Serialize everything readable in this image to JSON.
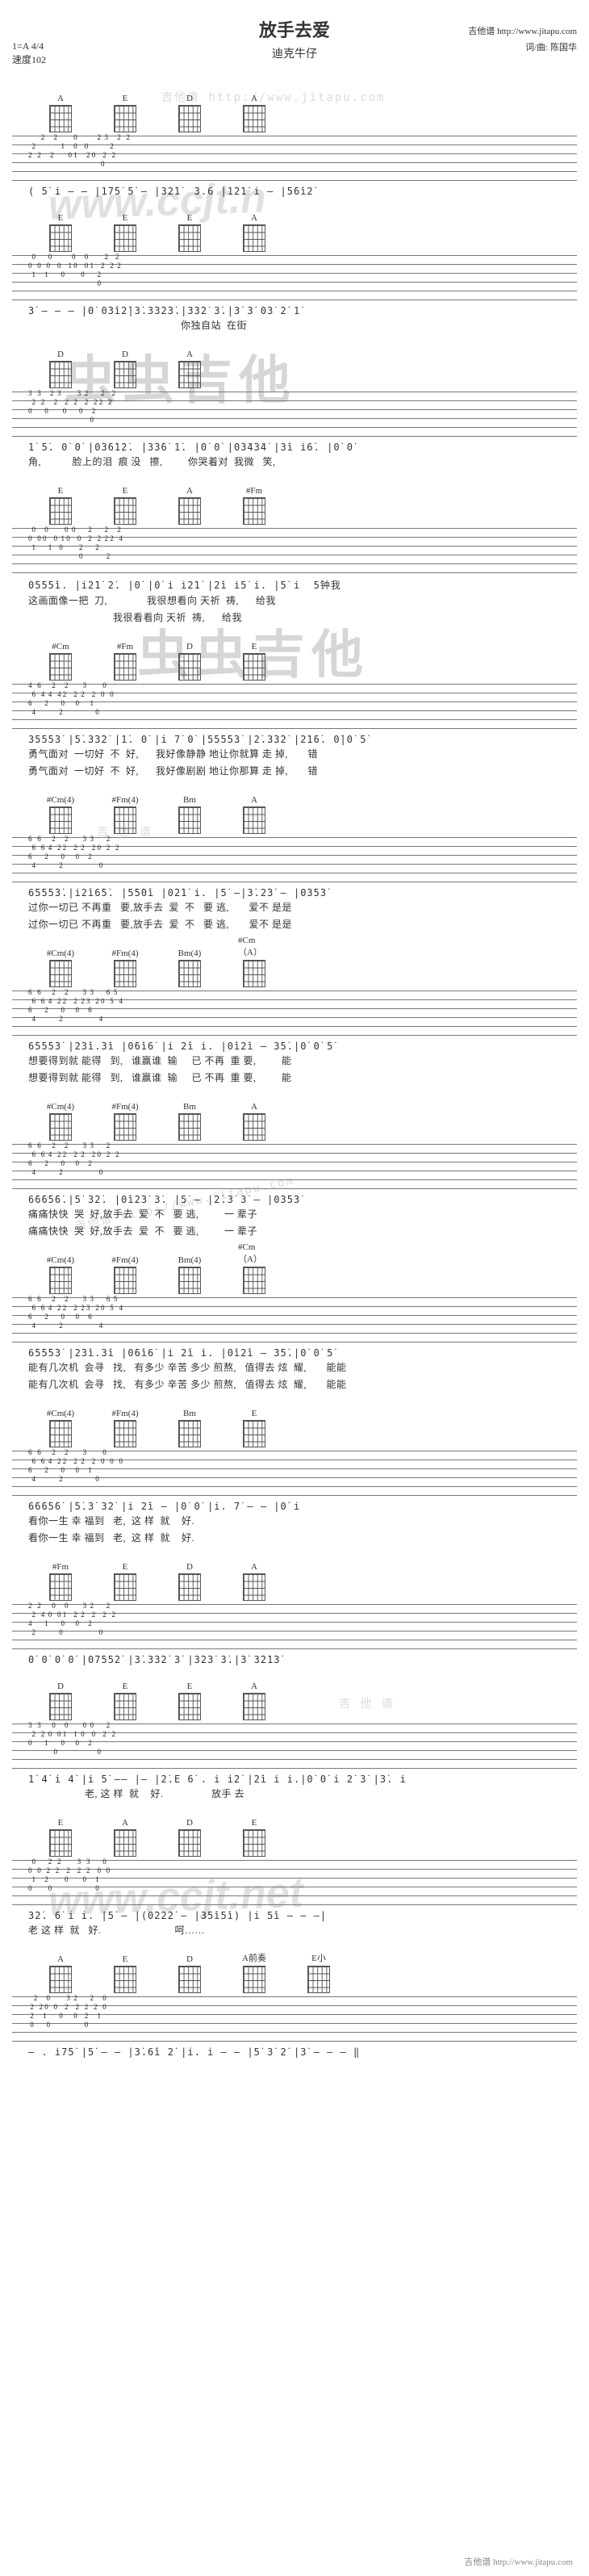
{
  "header": {
    "title": "放手去爱",
    "subtitle": "迪克牛仔",
    "key": "1=A  4/4",
    "tempo": "速度102",
    "credit_site_label": "吉他谱",
    "credit_site": "http://www.jitapu.com",
    "credit_composer_label": "词/曲:",
    "credit_composer": "陈国华"
  },
  "chords": {
    "A": "A",
    "E": "E",
    "D": "D",
    "Bm": "Bm",
    "sFm": "#Fm",
    "sCm": "#Cm",
    "sCm4": "#Cm(4)",
    "sFm4": "#Fm(4)",
    "Bm4": "Bm(4)",
    "sCm_A": "#Cm（A）",
    "Ehalf": "E½",
    "Ahalf": "A½",
    "A_pref": "A前奏",
    "Esmall": "E小"
  },
  "systems": [
    {
      "chords": [
        "A",
        "E",
        "D",
        "A"
      ],
      "tab": "       2     2         0           2  3     2   2\n  2              1     0    0            2\n2   2     2        0 1     2 0    2   2\n                                        0",
      "notation": "( 5̇ i — — |1̇7̇5̇ 5̇ — |32̇1̇  3.6 |1̇2̇1̇ i — |5̇6̇i2̇",
      "lyric": ""
    },
    {
      "chords": [
        "E",
        "E",
        "E",
        "A"
      ],
      "tab": "  0       0           0     0         2    2\n0   0   0    0    1 0    0 1    2   2  2\n  1     1       0         0       2\n                                      0",
      "notation": "3̇ — — — |0̇ 0̇3̇i2̇|3̇.3̇3̇2̇3̇.|3̇3̇2̇ 3̇.|3̇ 3̇ 0̇3̇ 2̇ 1̇",
      "lyric": "                                                      你独自站  在街"
    },
    {
      "chords": [
        "D",
        "D",
        "A"
      ],
      "tab": "3   3     2  3         3  2       2    2\n  2   2     2    2   2    2   2 2   2\n0       0        0       0     2\n                                  0",
      "notation": "1̇ 5̇. 0̇ 0̇ |0̇3̇6̇1̇2̇. |3̇3̇6̇ 1̇. |0̇ 0̇ |0̇3̇4̇3̇4̇ |3̇i i̇6̇. |0̇ 0̇",
      "lyric": "角,           脸上的泪  痕 没   擦,         你哭着对  我微   笑,"
    },
    {
      "chords": [
        "E",
        "E",
        "A",
        "sFm"
      ],
      "tab": "  0     0         0  0       2       2     2\n0   0 0    0  1 0    0    2   2  2 2   4\n  1       1    0         2       2\n                            0             2",
      "notation": "0̇5̇5̇5̇i. |i2̇1̇ 2̇. |0̇ |0̇ i i2̇1̇ |2̇i i̇5̇ i. |5̇ i  5̇钟我",
      "lyric": "这画面像一把  刀,              我很想看向 天祈  祷,      给我\n                              我很看看向 天祈  祷,      给我"
    },
    {
      "chords": [
        "sCm",
        "sFm",
        "D",
        "E"
      ],
      "tab": "4   6      2     2        3         0\n  6   4  4   4 2    2  2    2   0   0\n6       2       0      0      1\n  4             2                  0",
      "notation": "3̇5̇5̇5̇3̇ |5̇.3̇3̇2̇ |1̇. 0̇ |i 7̇ 0̇ |5̇5̇5̇5̇3̇ |2̇.3̇3̇2̇ |2̇1̇6̇. 0̇|0̇ 5̇",
      "lyric": "勇气面对  一切好  不  好,      我好像静静 地让你就算 走 掉,       错\n勇气面对  一切好  不  好,      我好像剧剧 地让你那算 走 掉,       错"
    },
    {
      "chords": [
        "sCm4",
        "sFm4",
        "Bm",
        "A"
      ],
      "tab": "6   6      2     2        3  3       2\n  6   6  4   2 2    2  2    2 0   2   2\n6       2       0      0     2\n  4             2                    0",
      "notation": "6̇5̇5̇5̇3̇.|i2̇i6̇5̇. |5̇5̇0̇i |0̇2̇1̇ i. |5̇ —|3̇.2̇3̇ — |0̇3̇5̇3̇",
      "lyric": "过你一切已 不再重   要,放手去  爱  不   要 逃,       爱不 是是\n过你一切已 不再重   要,放手去  爱  不   要 逃,       爱不 是是"
    },
    {
      "chords": [
        "sCm4",
        "sFm4",
        "Bm4",
        "sCm_A"
      ],
      "tab": "6   6      2     2        3  3       6  5\n  6   6  4   2 2    2  2 3   2 0   5   4\n6       2       0      0     6\n  4             2                    4",
      "notation": "6̇5̇5̇5̇3̇ |2̇3̇i.3̇i |0̇6̇i6̇ |i 2̇i i. |0̇i2̇i — 3̇5̇.|0̇ 0̇ 5̇",
      "lyric": "想要得到就 能得   到,   谁赢谁  输     已 不再  重 要,         能\n想要得到就 能得   到,   谁赢谁  输     已 不再  重 要,         能"
    },
    {
      "chords": [
        "sCm4",
        "sFm4",
        "Bm",
        "A"
      ],
      "tab": "6   6      2     2        3  3       2\n  6   6  4   2 2    2  2    2 0   2   2\n6       2       0      0     2\n  4             2                    0",
      "notation": "6̇6̇6̇5̇6̇.|5̇ 3̇2̇. |0̇i2̇3̇ 3̇. |5̇ — |2̇.3̇ 3̇ — |0̇3̇5̇3̇",
      "lyric": "痛痛快快  哭  好,放手去  爱  不   要 逃,         一 辈子\n痛痛快快  哭  好,放手去  爱  不   要 逃,         一 辈子"
    },
    {
      "chords": [
        "sCm4",
        "sFm4",
        "Bm4",
        "sCm_A"
      ],
      "tab": "6   6      2     2        3  3       6  5\n  6   6  4   2 2    2  2 3   2 0   5   4\n6       2       0      0     6\n  4             2                    4",
      "notation": "6̇5̇5̇5̇3̇ |2̇3̇i.3̇i |0̇6̇i6̇ |i 2̇i i. |0̇i2̇i — 3̇5̇.|0̇ 0̇ 5̇",
      "lyric": "能有几次机  会寻   找,   有多少 辛苦 多少 煎熬,   值得去 炫  耀,       能能\n能有几次机  会寻   找,   有多少 辛苦 多少 煎熬,   值得去 炫  耀,       能能"
    },
    {
      "chords": [
        "sCm4",
        "sFm4",
        "Bm",
        "E"
      ],
      "tab": "6   6      2     2        3         0\n  6   6  4   2 2    2  2    2   0   0   0\n6       2       0      0     1\n  4             2                  0",
      "notation": "6̇6̇6̇5̇6̇ |5̇.3̇ 3̇2̇ |i 2̇i — |0̇ 0̇ |i. 7̇ — — |0̇ i",
      "lyric": "看你一生 幸 福到   老,  这 样  就    好.\n看你一生 幸 福到   老,  这 样  就    好."
    },
    {
      "chords": [
        "sFm",
        "E",
        "D",
        "A"
      ],
      "tab": "2   2      0     0        3  2       2\n  2   4  0   0 1    2  2    2    2   2\n4       1       0      0     2\n  2             0                    0",
      "notation": "0̇ 0̇ 0̇ 0̇ |0̇7̇5̇5̇2̇ |3̇.3̇3̇2̇ 3̇ |3̇2̇3̇ 3̇.|3̇ 3̇2̇1̇3̇",
      "lyric": ""
    },
    {
      "chords": [
        "D",
        "E",
        "E",
        "A"
      ],
      "tab": "3   3      0     0        0  0       2\n  2   2  0   0 1    1  0    0    2   2\n0       1       0      0     2\n              0                      0",
      "notation": "1̇ 4̇ i 4̇ |i 5̇ —— |— |2̇.E 6̇ . i i2̇ |2̇i i i.|0̇ 0̇ i 2̇ 3̇ |3̇. i",
      "lyric": "                    老, 这 样  就    好.                 放手 去"
    },
    {
      "chords": [
        "E",
        "A",
        "D",
        "E"
      ],
      "tab": "  0       2   2         3   3       0\n0   0   2   2    2    2   2    0   0\n  1     2         0        0     1\n0         0                        0",
      "notation": "3̇2̇. 6̇ i i. |5̇ — |(0̇2̇2̇2̇ — |3̇5̇i5̇i) |i 5̇i — — —|",
      "lyric": "老 这 样  就   好.                          呵……"
    },
    {
      "chords": [
        "A",
        "E",
        "D",
        "A_pref",
        "Esmall"
      ],
      "tab": "   2     0         3  2       2     0\n 2   2 0   0    2    2   2   2   0\n 2     1       0      0    2     1\n 0       0                   0",
      "notation": "— . i̇7̇5̇ |5̇ — — |3̇.6̇i 2̇ |i. i — — |5̇ 3̇ 2̇ |3̇ — — — ‖",
      "lyric": ""
    }
  ],
  "watermarks": {
    "ccjt1": "www.ccjt.n",
    "ccjt2": "www.ccjt.net",
    "chinese": "虫虫吉他",
    "dotted": "吉他谱 http://www.jitapu.com",
    "dotted2": "吉 他 谱"
  },
  "style": {
    "page_bg": "#f8f8f8",
    "sheet_bg": "#ffffff",
    "text_color": "#333333",
    "staff_line_color": "#777777",
    "chord_grid_color": "#555555",
    "title_fontsize": 22,
    "subtitle_fontsize": 14,
    "meta_fontsize": 12,
    "notation_fontsize": 12,
    "lyric_fontsize": 12,
    "chord_name_fontsize": 11,
    "watermark_alpha": 0.15
  },
  "footer": "吉他谱 http://www.jitapu.com"
}
